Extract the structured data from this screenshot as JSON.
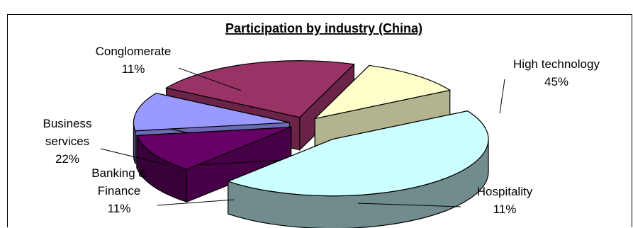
{
  "chart_data": {
    "type": "pie",
    "title": "Participation by industry (China)",
    "three_d": true,
    "exploded": true,
    "slices": [
      {
        "label": [
          "High technology",
          "45%"
        ],
        "value": 45,
        "color": "#ccffff"
      },
      {
        "label": [
          "Hospitality",
          "11%"
        ],
        "value": 11,
        "color": "#660066"
      },
      {
        "label": [
          "Banking &",
          "Finance",
          "11%"
        ],
        "value": 11,
        "color": "#9999ff"
      },
      {
        "label": [
          "Business",
          "services",
          "22%"
        ],
        "value": 22,
        "color": "#993366"
      },
      {
        "label": [
          "Conglomerate",
          "11%"
        ],
        "value": 11,
        "color": "#ffffcc"
      }
    ],
    "legend": "none"
  }
}
